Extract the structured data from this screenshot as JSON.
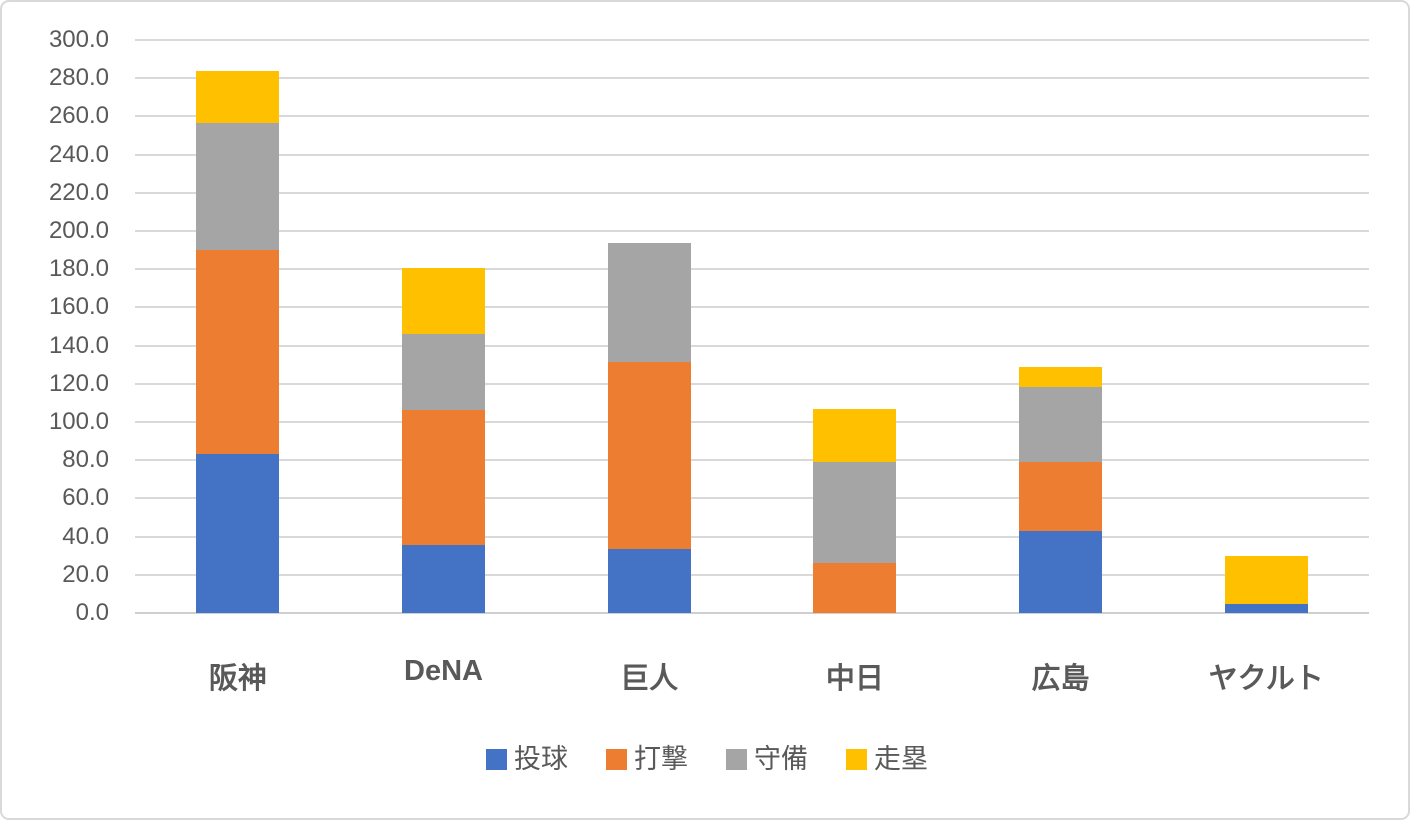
{
  "chart_data": {
    "type": "bar",
    "stacked": true,
    "title": "",
    "xlabel": "",
    "ylabel": "",
    "categories": [
      "阪神",
      "DeNA",
      "巨人",
      "中日",
      "広島",
      "ヤクルト"
    ],
    "series": [
      {
        "name": "投球",
        "color": "#4472C4",
        "values": [
          83.2,
          35.8,
          33.4,
          0.0,
          42.7,
          4.5
        ]
      },
      {
        "name": "打撃",
        "color": "#ED7D31",
        "values": [
          107.1,
          70.3,
          97.9,
          26.0,
          36.1,
          0.0
        ]
      },
      {
        "name": "守備",
        "color": "#A5A5A5",
        "values": [
          66.2,
          39.9,
          62.3,
          52.8,
          39.4,
          0.0
        ]
      },
      {
        "name": "走塁",
        "color": "#FFC000",
        "values": [
          27.3,
          34.5,
          0.0,
          28.0,
          10.6,
          25.5
        ]
      }
    ],
    "totals": [
      283.8,
      180.5,
      193.6,
      106.8,
      128.8,
      30.0
    ],
    "ylim": [
      0,
      300
    ],
    "ystep": 20,
    "ytick_labels": [
      "0.0",
      "20.0",
      "40.0",
      "60.0",
      "80.0",
      "100.0",
      "120.0",
      "140.0",
      "160.0",
      "180.0",
      "200.0",
      "220.0",
      "240.0",
      "260.0",
      "280.0",
      "300.0"
    ],
    "grid": true,
    "legend_position": "bottom"
  },
  "colors": {
    "background": "#FFFFFF",
    "border": "#D9D9D9",
    "gridline": "#D9D9D9",
    "axis_text": "#595959",
    "series_blue": "#4472C4",
    "series_orange": "#ED7D31",
    "series_gray": "#A5A5A5",
    "series_yellow": "#FFC000"
  }
}
